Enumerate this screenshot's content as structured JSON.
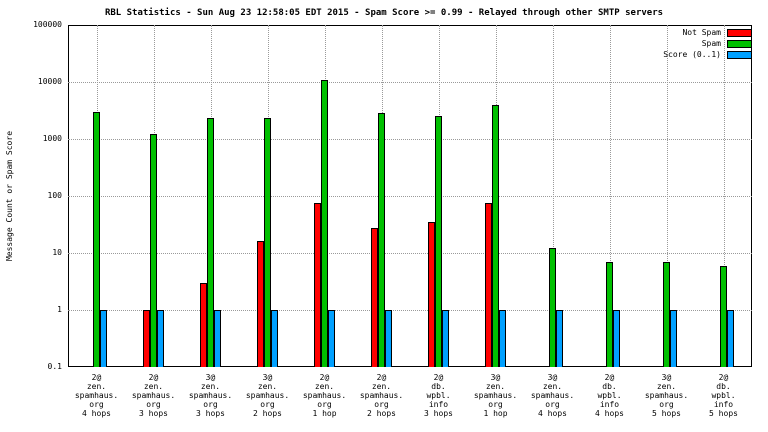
{
  "title": "RBL Statistics - Sun Aug 23 12:58:05 EDT 2015 - Spam Score >= 0.99 - Relayed through other SMTP servers",
  "ylabel": "Message Count or Spam Score",
  "chart_data": {
    "type": "bar",
    "scale": "log",
    "title": "RBL Statistics - Sun Aug 23 12:58:05 EDT 2015 - Spam Score >= 0.99 - Relayed through other SMTP servers",
    "xlabel": "",
    "ylabel": "Message Count or Spam Score",
    "ylim": [
      0.1,
      100000
    ],
    "yticks": [
      "100000",
      "10000",
      "1000",
      "100",
      "10",
      "1",
      "0.1"
    ],
    "grid": true,
    "legend_position": "top-right",
    "categories": [
      [
        "2@",
        "zen.",
        "spamhaus.",
        "org",
        "4 hops"
      ],
      [
        "2@",
        "zen.",
        "spamhaus.",
        "org",
        "3 hops"
      ],
      [
        "3@",
        "zen.",
        "spamhaus.",
        "org",
        "3 hops"
      ],
      [
        "3@",
        "zen.",
        "spamhaus.",
        "org",
        "2 hops"
      ],
      [
        "2@",
        "zen.",
        "spamhaus.",
        "org",
        "1 hop"
      ],
      [
        "2@",
        "zen.",
        "spamhaus.",
        "org",
        "2 hops"
      ],
      [
        "2@",
        "db.",
        "wpbl.",
        "info",
        "3 hops"
      ],
      [
        "3@",
        "zen.",
        "spamhaus.",
        "org",
        "1 hop"
      ],
      [
        "3@",
        "zen.",
        "spamhaus.",
        "org",
        "4 hops"
      ],
      [
        "2@",
        "db.",
        "wpbl.",
        "info",
        "4 hops"
      ],
      [
        "3@",
        "zen.",
        "spamhaus.",
        "org",
        "5 hops"
      ],
      [
        "2@",
        "db.",
        "wpbl.",
        "info",
        "5 hops"
      ]
    ],
    "series": [
      {
        "name": "Not Spam",
        "color": "#ff0000",
        "values": [
          null,
          1,
          3,
          16,
          75,
          28,
          35,
          75,
          null,
          null,
          null,
          null
        ]
      },
      {
        "name": "Spam",
        "color": "#00c000",
        "values": [
          3000,
          1200,
          2300,
          2300,
          11000,
          2900,
          2500,
          4000,
          12,
          7,
          7,
          6
        ]
      },
      {
        "name": "Score (0..1)",
        "color": "#00a0ff",
        "values": [
          1,
          1,
          1,
          1,
          1,
          1,
          1,
          1,
          1,
          1,
          1,
          1
        ]
      }
    ]
  }
}
